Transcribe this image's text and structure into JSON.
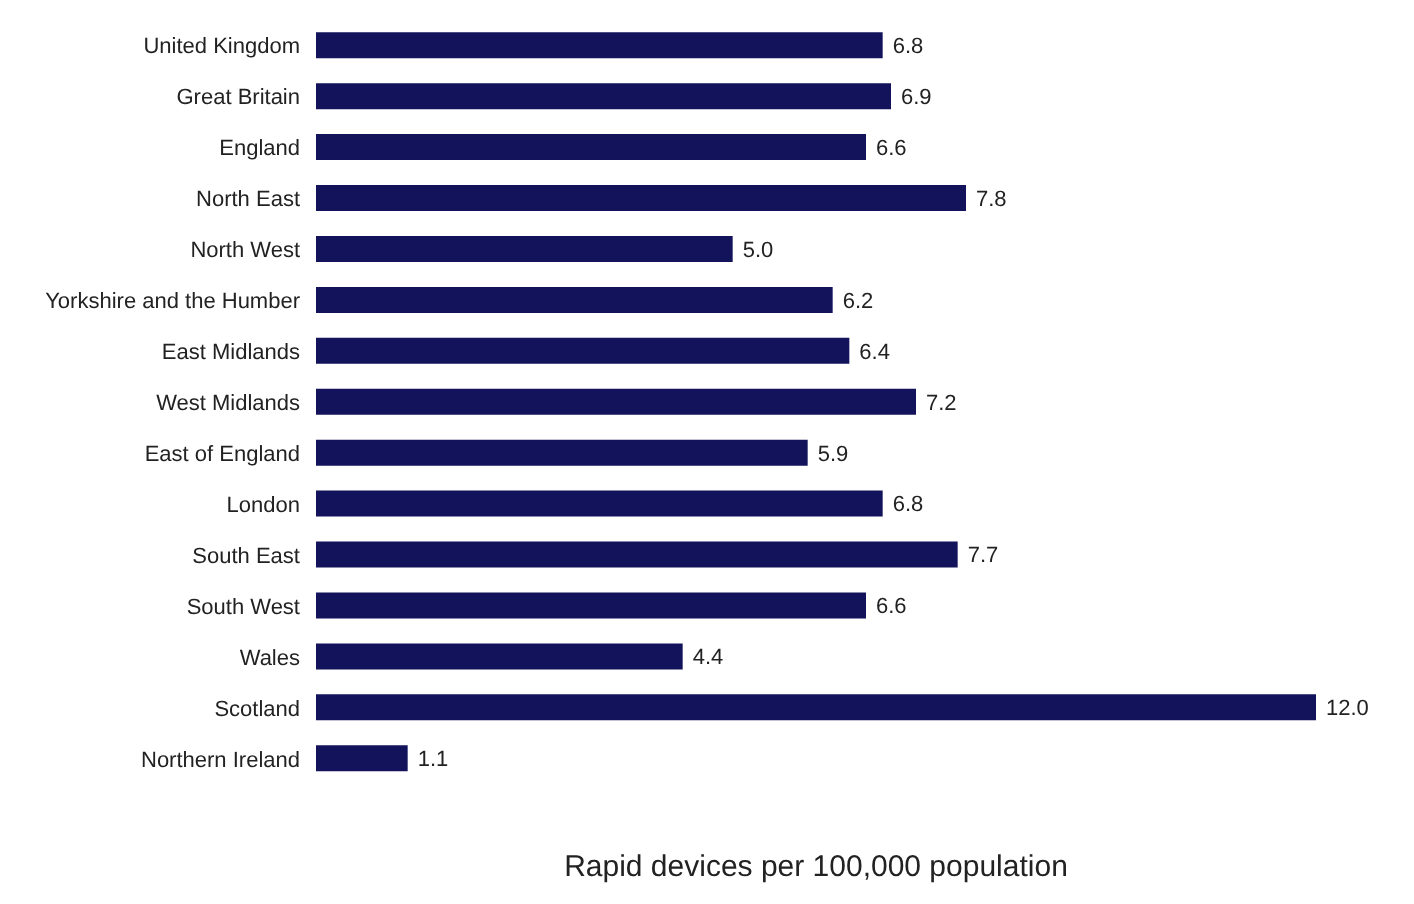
{
  "chart_data": {
    "type": "bar",
    "orientation": "horizontal",
    "xlabel": "Rapid devices per 100,000 population",
    "categories": [
      "United Kingdom",
      "Great Britain",
      "England",
      "North East",
      "North West",
      "Yorkshire and the Humber",
      "East Midlands",
      "West Midlands",
      "East of England",
      "London",
      "South East",
      "South West",
      "Wales",
      "Scotland",
      "Northern Ireland"
    ],
    "values": [
      6.8,
      6.9,
      6.6,
      7.8,
      5.0,
      6.2,
      6.4,
      7.2,
      5.9,
      6.8,
      7.7,
      6.6,
      4.4,
      12.0,
      1.1
    ],
    "value_labels": [
      "6.8",
      "6.9",
      "6.6",
      "7.8",
      "5.0",
      "6.2",
      "6.4",
      "7.2",
      "5.9",
      "6.8",
      "7.7",
      "6.6",
      "4.4",
      "12.0",
      "1.1"
    ],
    "color": "#12135a",
    "tick_labels": "y"
  }
}
